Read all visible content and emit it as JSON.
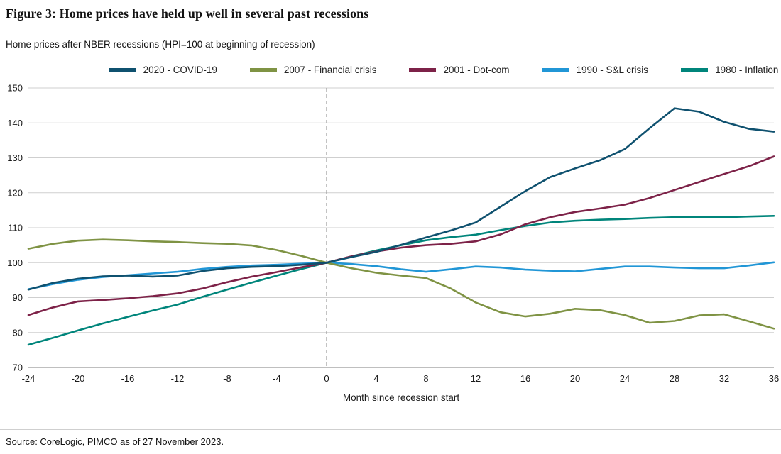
{
  "header": {
    "title": "Figure 3: Home prices have held up well in several past recessions",
    "subtitle": "Home prices after NBER recessions (HPI=100 at beginning of recession)"
  },
  "footer": {
    "source": "Source: CoreLogic, PIMCO as of 27 November 2023."
  },
  "chart_data": {
    "type": "line",
    "title": "Home prices after NBER recessions (HPI=100 at beginning of recession)",
    "xlabel": "Month since recession start",
    "ylabel": "",
    "xlim": [
      -24,
      36
    ],
    "ylim": [
      70,
      150
    ],
    "x_ticks": [
      -24,
      -20,
      -16,
      -12,
      -8,
      -4,
      0,
      4,
      8,
      12,
      16,
      20,
      24,
      28,
      32,
      36
    ],
    "y_ticks": [
      70,
      80,
      90,
      100,
      110,
      120,
      130,
      140,
      150
    ],
    "grid": "horizontal",
    "legend_position": "top",
    "reference_line": {
      "x": 0,
      "style": "dashed",
      "color": "#9b9b9b"
    },
    "x": [
      -24,
      -22,
      -20,
      -18,
      -16,
      -14,
      -12,
      -10,
      -8,
      -6,
      -4,
      -2,
      0,
      2,
      4,
      6,
      8,
      10,
      12,
      14,
      16,
      18,
      20,
      22,
      24,
      26,
      28,
      30,
      32,
      34,
      36
    ],
    "series": [
      {
        "name": "2020 - COVID-19",
        "color": "#0f516f",
        "values": [
          92.3,
          94.2,
          95.4,
          96.1,
          96.3,
          96.0,
          96.3,
          97.6,
          98.4,
          98.8,
          99.0,
          99.4,
          100,
          101.6,
          103.1,
          105.1,
          107.2,
          109.2,
          111.5,
          116.0,
          120.5,
          124.5,
          127.0,
          129.3,
          132.5,
          138.5,
          144.2,
          143.2,
          140.3,
          138.3,
          137.5
        ]
      },
      {
        "name": "2007 - Financial crisis",
        "color": "#7f9344",
        "values": [
          104.0,
          105.4,
          106.3,
          106.6,
          106.4,
          106.1,
          105.9,
          105.6,
          105.4,
          104.9,
          103.6,
          101.9,
          100,
          98.4,
          97.1,
          96.3,
          95.6,
          92.6,
          88.6,
          85.8,
          84.6,
          85.4,
          86.8,
          86.4,
          85.0,
          82.8,
          83.3,
          84.9,
          85.2,
          83.2,
          81.1
        ]
      },
      {
        "name": "2001 - Dot-com",
        "color": "#7d2248",
        "values": [
          85.0,
          87.2,
          88.9,
          89.3,
          89.8,
          90.4,
          91.2,
          92.6,
          94.4,
          96.0,
          97.3,
          98.7,
          100,
          101.8,
          103.2,
          104.3,
          105.0,
          105.4,
          106.1,
          108.1,
          111.0,
          113.0,
          114.5,
          115.5,
          116.6,
          118.5,
          120.8,
          123.1,
          125.4,
          127.6,
          130.4
        ]
      },
      {
        "name": "1990 - S&L crisis",
        "color": "#2196d6",
        "values": [
          92.4,
          93.9,
          95.1,
          95.9,
          96.4,
          96.9,
          97.4,
          98.2,
          98.8,
          99.2,
          99.4,
          99.7,
          100,
          99.6,
          99.0,
          98.1,
          97.4,
          98.1,
          98.9,
          98.6,
          98.0,
          97.7,
          97.5,
          98.2,
          98.9,
          98.9,
          98.6,
          98.4,
          98.4,
          99.2,
          100.1
        ]
      },
      {
        "name": "1980 - Inflation",
        "color": "#00857b",
        "values": [
          76.5,
          78.5,
          80.6,
          82.6,
          84.5,
          86.3,
          88.0,
          90.2,
          92.3,
          94.3,
          96.3,
          98.2,
          100,
          101.8,
          103.5,
          105.0,
          106.4,
          107.3,
          108.0,
          109.3,
          110.5,
          111.5,
          112.0,
          112.3,
          112.5,
          112.8,
          113.0,
          113.0,
          113.0,
          113.2,
          113.4
        ]
      }
    ]
  }
}
